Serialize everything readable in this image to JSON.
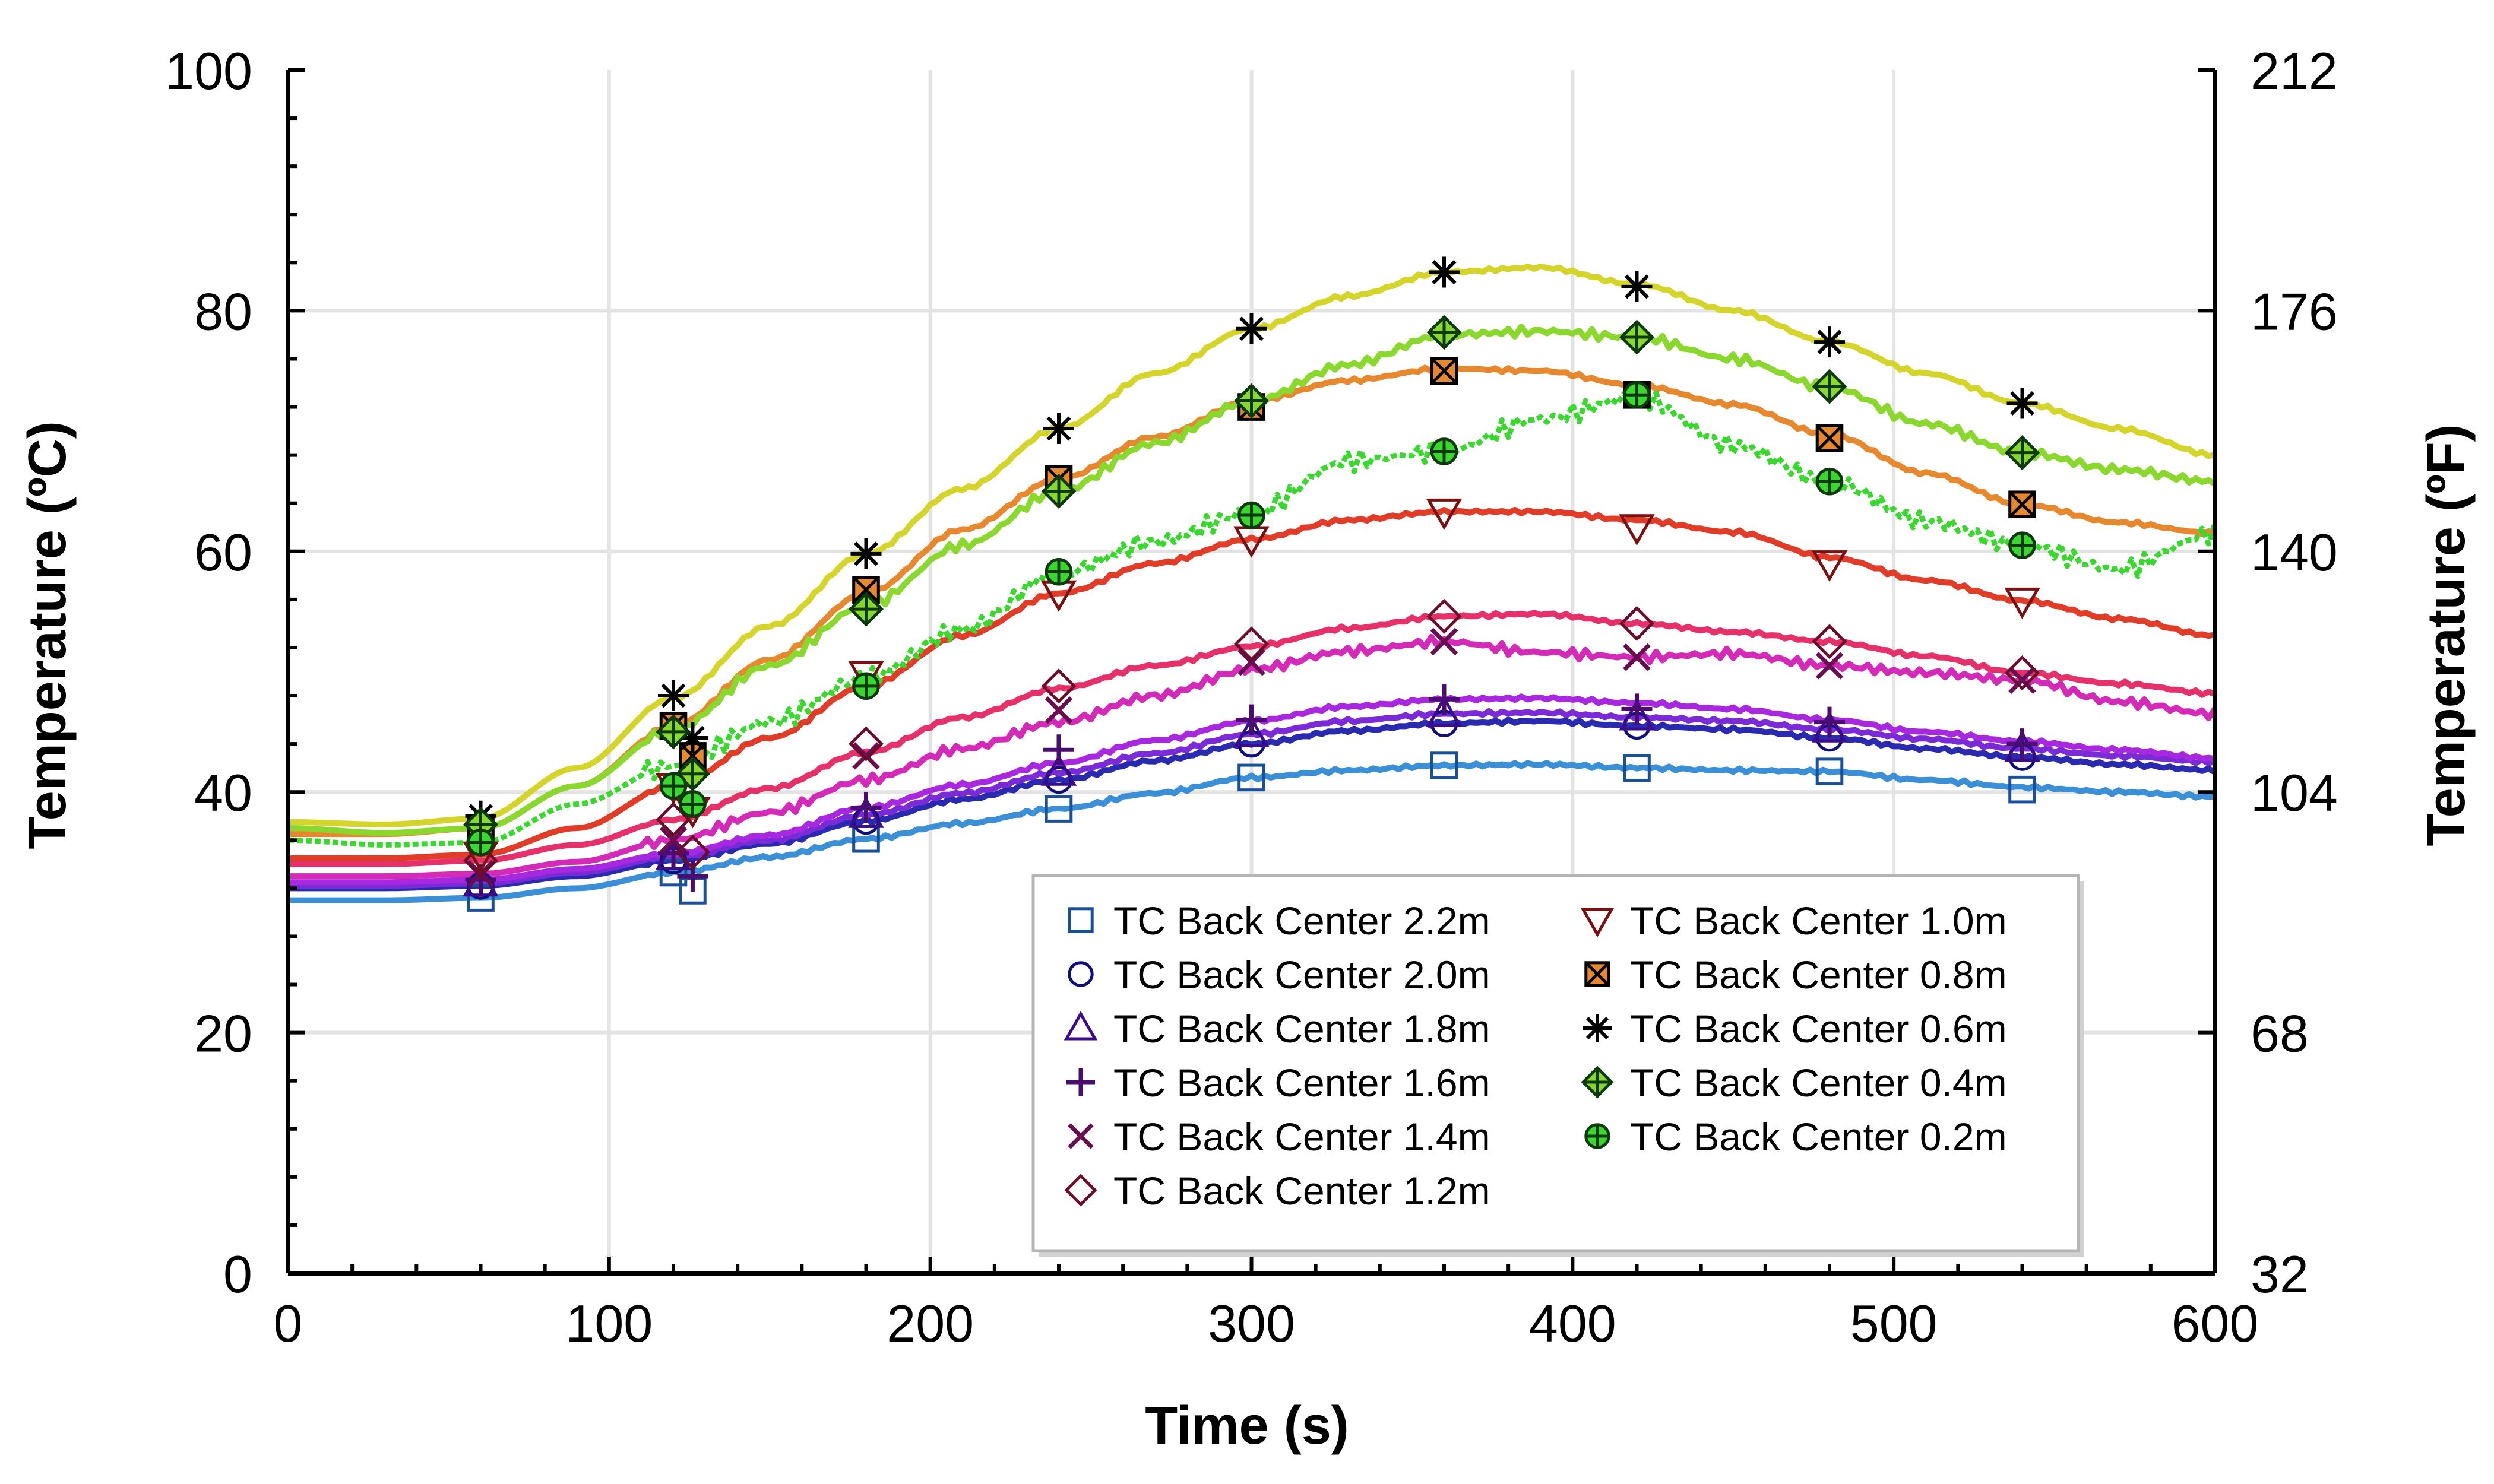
{
  "chart_data": {
    "type": "line",
    "xlabel": "Time (s)",
    "ylabel": "Temperature (ºC)",
    "y2label": "Temperature (ºF)",
    "xlim": [
      0,
      600
    ],
    "ylim": [
      0,
      100
    ],
    "y2lim": [
      32,
      212
    ],
    "xticks": [
      "0",
      "100",
      "200",
      "300",
      "400",
      "500",
      "600"
    ],
    "yticks": [
      "0",
      "20",
      "40",
      "60",
      "80",
      "100"
    ],
    "y2ticks": [
      "32",
      "68",
      "104",
      "140",
      "176",
      "212"
    ],
    "grid": true,
    "legend_position": "bottom-right",
    "colors": {
      "c22": "#3b8fd6",
      "c20": "#2a2ab0",
      "c18": "#7a2ad6",
      "c16": "#a828e0",
      "c14": "#d42ab8",
      "c12": "#e6306a",
      "c10": "#e03c28",
      "c08": "#e8882e",
      "c06": "#d4d42a",
      "c04": "#8ad82e",
      "c02": "#3ad82e"
    },
    "x": [
      0,
      30,
      60,
      90,
      120,
      150,
      180,
      210,
      240,
      270,
      300,
      330,
      360,
      390,
      420,
      450,
      480,
      510,
      540,
      570,
      600
    ],
    "series": [
      {
        "key": "c22",
        "name": "TC Back Center 2.2m",
        "marker": "square",
        "values": [
          31,
          31,
          31.2,
          32,
          33.3,
          34.6,
          36.1,
          37.4,
          38.6,
          39.9,
          41.2,
          41.8,
          42.2,
          42.3,
          42,
          41.8,
          41.7,
          41,
          40.4,
          40,
          39.6
        ],
        "marker_points": [
          [
            60,
            31.2
          ],
          [
            120,
            33.3
          ],
          [
            126,
            31.8
          ],
          [
            180,
            36.1
          ],
          [
            240,
            38.6
          ],
          [
            300,
            41.2
          ],
          [
            360,
            42.2
          ],
          [
            420,
            42
          ],
          [
            480,
            41.7
          ],
          [
            540,
            40.2
          ]
        ]
      },
      {
        "key": "c20",
        "name": "TC Back Center 2.0m",
        "marker": "circle",
        "values": [
          32,
          32,
          32.2,
          33,
          34.3,
          35.7,
          37.6,
          39.4,
          41,
          42.6,
          44,
          45.1,
          45.7,
          45.9,
          45.5,
          45.2,
          44.5,
          43.6,
          42.9,
          42.3,
          41.8
        ],
        "marker_points": [
          [
            60,
            32.2
          ],
          [
            120,
            34.3
          ],
          [
            180,
            37.6
          ],
          [
            240,
            41
          ],
          [
            300,
            44
          ],
          [
            360,
            45.7
          ],
          [
            420,
            45.5
          ],
          [
            480,
            44.5
          ],
          [
            540,
            42.9
          ]
        ]
      },
      {
        "key": "c18",
        "name": "TC Back Center 1.8m",
        "marker": "triangle",
        "values": [
          32.2,
          32.2,
          32.4,
          33.3,
          34.6,
          36,
          38.1,
          39.9,
          41.6,
          43.2,
          44.8,
          45.9,
          46.5,
          46.6,
          46.2,
          45.9,
          45.2,
          44.4,
          43.6,
          43,
          42.5
        ],
        "marker_points": [
          [
            60,
            32.4
          ],
          [
            120,
            34.6
          ],
          [
            180,
            38.1
          ],
          [
            240,
            41.6
          ],
          [
            300,
            44.8
          ],
          [
            360,
            46.5
          ],
          [
            420,
            46.2
          ],
          [
            480,
            45.2
          ],
          [
            540,
            43.6
          ]
        ]
      },
      {
        "key": "c16",
        "name": "TC Back Center 1.6m",
        "marker": "plus",
        "values": [
          32.5,
          32.5,
          32.7,
          33.6,
          34.9,
          36.4,
          38.7,
          40.6,
          42.4,
          44.3,
          45.9,
          47.1,
          47.7,
          47.8,
          47.4,
          46.9,
          46,
          45,
          44.2,
          43.5,
          42.8
        ],
        "marker_points": [
          [
            60,
            32.7
          ],
          [
            120,
            34.9
          ],
          [
            126,
            33
          ],
          [
            180,
            38.7
          ],
          [
            240,
            43.5
          ],
          [
            300,
            46
          ],
          [
            360,
            47.7
          ],
          [
            420,
            46.9
          ],
          [
            480,
            45.8
          ],
          [
            540,
            44
          ]
        ]
      },
      {
        "key": "c14",
        "name": "TC Back Center 1.4m",
        "marker": "x",
        "values": [
          33,
          33,
          33.2,
          34.2,
          36,
          38.3,
          41,
          43.6,
          45.8,
          48,
          50.2,
          51.7,
          52.5,
          51.6,
          51.2,
          51.5,
          50.5,
          49.9,
          49.3,
          47.5,
          46.5
        ],
        "marker_points": [
          [
            60,
            33.2
          ],
          [
            120,
            36
          ],
          [
            180,
            43
          ],
          [
            240,
            46.8
          ],
          [
            300,
            50.8
          ],
          [
            360,
            52.5
          ],
          [
            420,
            51.2
          ],
          [
            480,
            50.5
          ],
          [
            540,
            49.3
          ]
        ]
      },
      {
        "key": "c12",
        "name": "TC Back Center 1.2m",
        "marker": "diamond",
        "values": [
          34,
          34,
          34.3,
          35.6,
          37.7,
          40.3,
          43.3,
          46.2,
          48.6,
          50.5,
          52.1,
          53.6,
          54.6,
          54.8,
          54,
          53.3,
          52.5,
          51.3,
          49.9,
          49,
          48.2
        ],
        "marker_points": [
          [
            60,
            34.3
          ],
          [
            120,
            37.7
          ],
          [
            126,
            35
          ],
          [
            180,
            44
          ],
          [
            240,
            48.8
          ],
          [
            300,
            52.3
          ],
          [
            360,
            54.6
          ],
          [
            420,
            54
          ],
          [
            480,
            52.5
          ],
          [
            540,
            49.9
          ]
        ]
      },
      {
        "key": "c10",
        "name": "TC Back Center 1.0m",
        "marker": "triangle-down",
        "values": [
          34.5,
          34.5,
          34.8,
          37,
          40.5,
          44.5,
          48.8,
          53,
          56.5,
          59,
          61,
          62.6,
          63.3,
          63.3,
          62.6,
          61.6,
          59.5,
          57.6,
          55.9,
          54.4,
          53
        ],
        "marker_points": [
          [
            60,
            34.8
          ],
          [
            120,
            40.5
          ],
          [
            126,
            38.5
          ],
          [
            180,
            49.8
          ],
          [
            240,
            56.5
          ],
          [
            300,
            61
          ],
          [
            360,
            63.3
          ],
          [
            420,
            62
          ],
          [
            480,
            59
          ],
          [
            540,
            55.9
          ]
        ]
      },
      {
        "key": "c08",
        "name": "TC Back Center 0.8m",
        "marker": "square-x",
        "values": [
          36.5,
          36.5,
          37,
          40.5,
          45.5,
          51,
          56.5,
          61.8,
          66,
          69.5,
          72.5,
          74.2,
          75.2,
          75,
          73.8,
          72.2,
          69.7,
          66.5,
          63.9,
          62.4,
          61.5
        ],
        "marker_points": [
          [
            60,
            37
          ],
          [
            120,
            45.5
          ],
          [
            126,
            43
          ],
          [
            180,
            56.8
          ],
          [
            240,
            66
          ],
          [
            300,
            72
          ],
          [
            360,
            75
          ],
          [
            420,
            73
          ],
          [
            480,
            69.4
          ],
          [
            540,
            63.9
          ]
        ]
      },
      {
        "key": "c06",
        "name": "TC Back Center 0.6m",
        "marker": "asterisk",
        "values": [
          37.5,
          37.3,
          37.8,
          42,
          47.8,
          53.8,
          59.8,
          65.2,
          70.2,
          74.8,
          78.5,
          81.2,
          83.2,
          83.6,
          82.2,
          80,
          77.4,
          74.8,
          72.3,
          70.2,
          68
        ],
        "marker_points": [
          [
            60,
            38
          ],
          [
            120,
            48
          ],
          [
            126,
            44.5
          ],
          [
            180,
            59.8
          ],
          [
            240,
            70.2
          ],
          [
            300,
            78.5
          ],
          [
            360,
            83.2
          ],
          [
            420,
            82
          ],
          [
            480,
            77.4
          ],
          [
            540,
            72.3
          ]
        ]
      },
      {
        "key": "c04",
        "name": "TC Back Center 0.4m",
        "marker": "diamond-plus",
        "values": [
          37,
          36.6,
          37,
          40.5,
          45.2,
          50.5,
          55.5,
          60.5,
          65,
          69,
          72.5,
          75.5,
          78,
          78.3,
          77.8,
          76,
          73.6,
          70.6,
          68.2,
          66.8,
          65.8
        ],
        "marker_points": [
          [
            60,
            37.3
          ],
          [
            120,
            45
          ],
          [
            126,
            41.5
          ],
          [
            180,
            55.2
          ],
          [
            240,
            65
          ],
          [
            300,
            72.5
          ],
          [
            360,
            78.2
          ],
          [
            420,
            77.8
          ],
          [
            480,
            73.7
          ],
          [
            540,
            68.2
          ]
        ]
      },
      {
        "key": "c02",
        "name": "TC Back Center 0.2m",
        "marker": "circle-plus",
        "values": [
          36,
          35.6,
          35.8,
          39,
          42.2,
          45.8,
          49.5,
          53.5,
          58.2,
          60.8,
          63.2,
          67.5,
          68.3,
          71,
          72.8,
          68.8,
          65.8,
          62.5,
          60.5,
          58.5,
          61.5
        ],
        "marker_points": [
          [
            60,
            35.8
          ],
          [
            120,
            40.5
          ],
          [
            126,
            39
          ],
          [
            180,
            48.8
          ],
          [
            240,
            58.3
          ],
          [
            300,
            63
          ],
          [
            360,
            68.3
          ],
          [
            420,
            73
          ],
          [
            480,
            65.8
          ],
          [
            540,
            60.5
          ]
        ]
      }
    ]
  }
}
